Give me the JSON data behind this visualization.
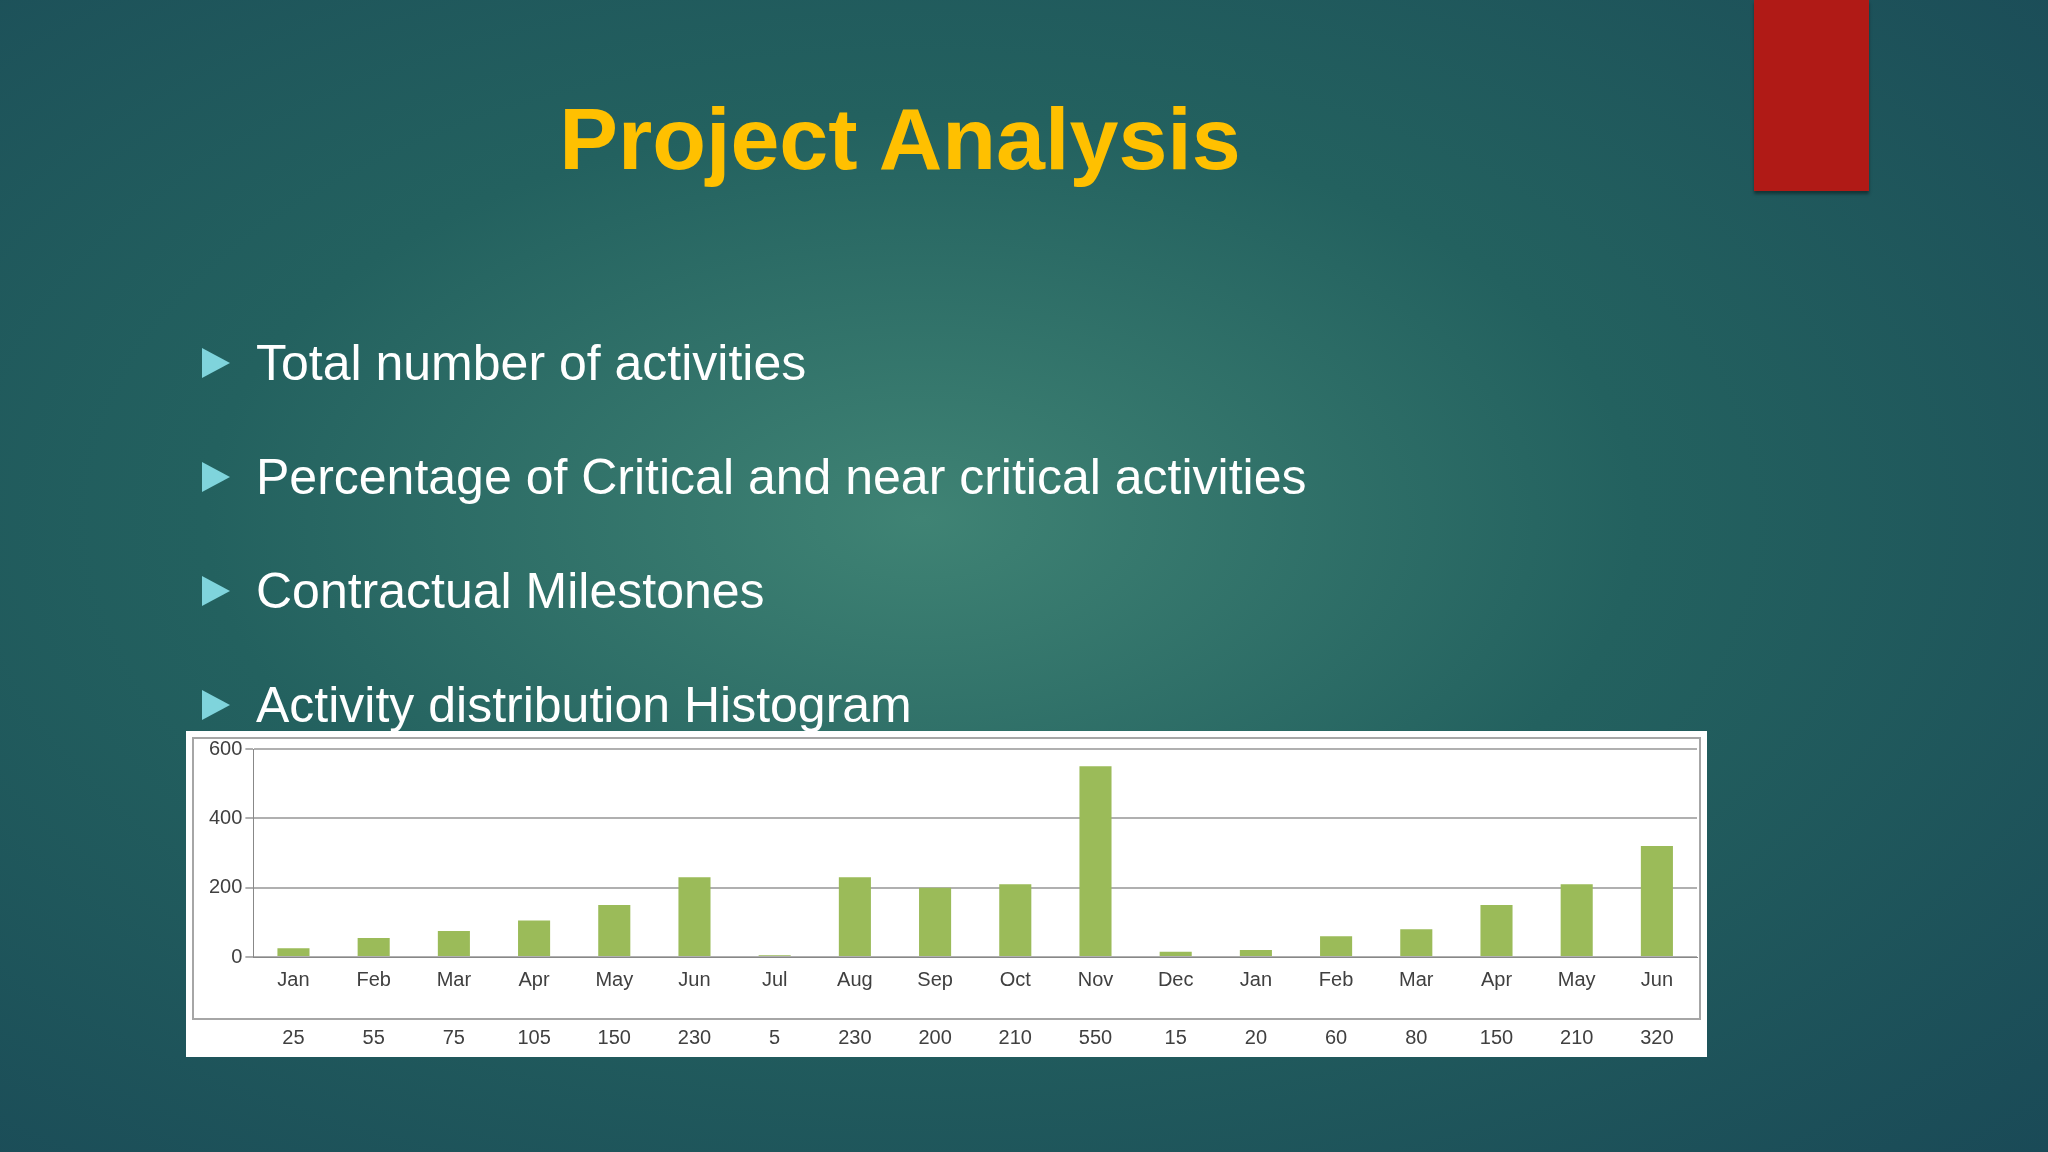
{
  "chart_data": {
    "type": "bar",
    "title": "Project Analysis",
    "annotations": [
      "Total number of activities",
      "Percentage of Critical and near critical activities",
      "Contractual Milestones",
      "Activity distribution Histogram"
    ],
    "categories": [
      "Jan",
      "Feb",
      "Mar",
      "Apr",
      "May",
      "Jun",
      "Jul",
      "Aug",
      "Sep",
      "Oct",
      "Nov",
      "Dec",
      "Jan",
      "Feb",
      "Mar",
      "Apr",
      "May",
      "Jun"
    ],
    "values": [
      25,
      55,
      75,
      105,
      150,
      230,
      5,
      230,
      200,
      210,
      550,
      15,
      20,
      60,
      80,
      150,
      210,
      320
    ],
    "color": "#9bbb59",
    "ylim": [
      0,
      600
    ],
    "yticks": [
      0,
      200,
      400,
      600
    ],
    "grid": "y",
    "data_labels": true,
    "legend": false
  }
}
